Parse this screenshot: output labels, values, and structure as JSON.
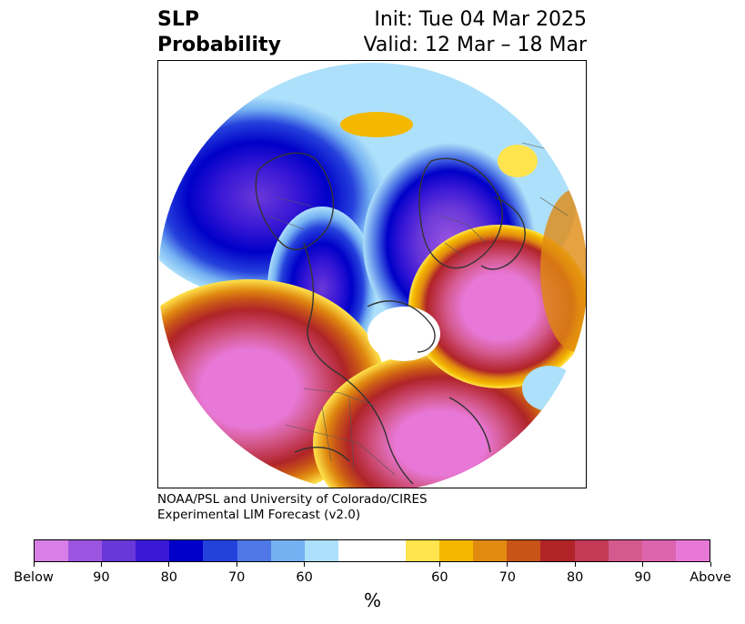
{
  "title": {
    "variable": "SLP",
    "product": "Probability",
    "init": "Init: Tue 04 Mar 2025",
    "valid": "Valid: 12 Mar – 18 Mar"
  },
  "credit": {
    "line1": "NOAA/PSL and University of Colorado/CIRES",
    "line2": "Experimental LIM Forecast (v2.0)"
  },
  "colorbar": {
    "unit": "%",
    "colors": [
      "#d97ee6",
      "#9c55e0",
      "#6a38d8",
      "#3a18d6",
      "#0000c8",
      "#2541dc",
      "#4f78e6",
      "#74b0f2",
      "#ade0fa",
      "#ffffff",
      "#ffffff",
      "#ffe44d",
      "#f4b800",
      "#e08a10",
      "#c85418",
      "#b02428",
      "#c23a56",
      "#d45a8e",
      "#dc64ae",
      "#e878d8"
    ],
    "labels": [
      "Below",
      "90",
      "80",
      "70",
      "60",
      "60",
      "70",
      "80",
      "90",
      "Above"
    ],
    "label_positions": [
      0,
      2,
      4,
      6,
      8,
      12,
      14,
      16,
      18,
      20
    ]
  },
  "map": {
    "projection": "north-polar-stereographic",
    "below_color": "#0000c8",
    "above_color": "#e878d8"
  }
}
